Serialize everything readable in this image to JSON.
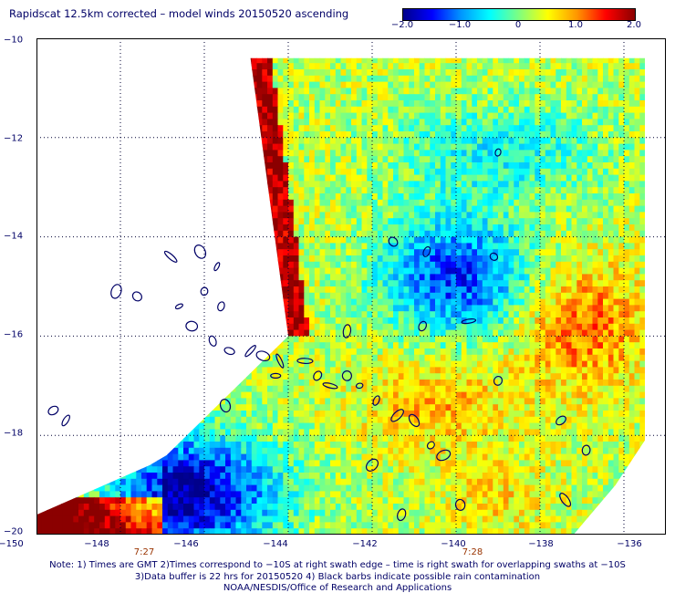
{
  "title": "Rapidscat 12.5km corrected – model winds 20150520 ascending",
  "colorbar": {
    "stops": [
      "#00008b",
      "#0000ff",
      "#0096ff",
      "#00ffff",
      "#7fff7f",
      "#ffff00",
      "#ff9600",
      "#ff0000",
      "#8b0000"
    ],
    "ticks": [
      "−2.0",
      "−1.0",
      "0",
      "1.0",
      "2.0"
    ],
    "range": [
      -2.0,
      2.0
    ]
  },
  "map": {
    "lon_range": [
      -150,
      -135
    ],
    "lat_range": [
      -20,
      -10
    ],
    "lat_labels": [
      "−10",
      "−12",
      "−14",
      "−16",
      "−18",
      "−20"
    ],
    "lon_labels": [
      "−150",
      "−148",
      "−146",
      "−144",
      "−142",
      "−140",
      "−138",
      "−136"
    ],
    "swath_polygon": [
      [
        -144.9,
        -10.4
      ],
      [
        -138.1,
        -10.4
      ],
      [
        -135.5,
        -10.4
      ],
      [
        -135.5,
        -18.1
      ],
      [
        -136.2,
        -19.0
      ],
      [
        -137.2,
        -20.0
      ],
      [
        -150,
        -20.0
      ],
      [
        -150,
        -19.6
      ],
      [
        -147.3,
        -18.6
      ],
      [
        -146.9,
        -18.4
      ],
      [
        -144.0,
        -16.0
      ]
    ],
    "time_labels": [
      {
        "text": "7:27",
        "lon": -147.0
      },
      {
        "text": "7:28",
        "lon": -139.4
      }
    ],
    "islands": [
      [
        -147.6,
        -15.2
      ],
      [
        -146.6,
        -15.4
      ],
      [
        -146.0,
        -15.1
      ],
      [
        -145.6,
        -15.4
      ],
      [
        -146.3,
        -15.8
      ],
      [
        -145.8,
        -16.1
      ],
      [
        -145.4,
        -16.3
      ],
      [
        -144.9,
        -16.3
      ],
      [
        -144.6,
        -16.4
      ],
      [
        -144.2,
        -16.5
      ],
      [
        -143.6,
        -16.5
      ],
      [
        -143.3,
        -16.8
      ],
      [
        -143.0,
        -17.0
      ],
      [
        -142.6,
        -16.8
      ],
      [
        -142.3,
        -17.0
      ],
      [
        -141.9,
        -17.3
      ],
      [
        -141.4,
        -17.6
      ],
      [
        -141.0,
        -17.7
      ],
      [
        -140.6,
        -18.2
      ],
      [
        -140.3,
        -18.4
      ],
      [
        -149.6,
        -17.5
      ],
      [
        -149.3,
        -17.7
      ],
      [
        -148.1,
        -15.1
      ],
      [
        -146.8,
        -14.4
      ],
      [
        -146.1,
        -14.3
      ],
      [
        -145.7,
        -14.6
      ],
      [
        -141.5,
        -14.1
      ],
      [
        -140.7,
        -14.3
      ],
      [
        -139.1,
        -14.4
      ],
      [
        -142.6,
        -15.9
      ],
      [
        -140.8,
        -15.8
      ],
      [
        -139.7,
        -15.7
      ],
      [
        -139.0,
        -16.9
      ],
      [
        -137.5,
        -17.7
      ],
      [
        -136.9,
        -18.3
      ],
      [
        -137.4,
        -19.3
      ],
      [
        -139.9,
        -19.4
      ],
      [
        -141.3,
        -19.6
      ],
      [
        -142.0,
        -18.6
      ],
      [
        -145.5,
        -17.4
      ],
      [
        -144.3,
        -16.8
      ],
      [
        -139.0,
        -12.3
      ]
    ]
  },
  "time_labels": [
    "7:27",
    "7:28"
  ],
  "notes": [
    "Note: 1) Times are GMT 2)Times correspond to −10S at right swath edge – time is right swath for overlapping swaths at −10S",
    "3)Data buffer is 22 hrs for 20150520 4) Black barbs indicate possible rain contamination",
    "NOAA/NESDIS/Office of Research and Applications"
  ]
}
